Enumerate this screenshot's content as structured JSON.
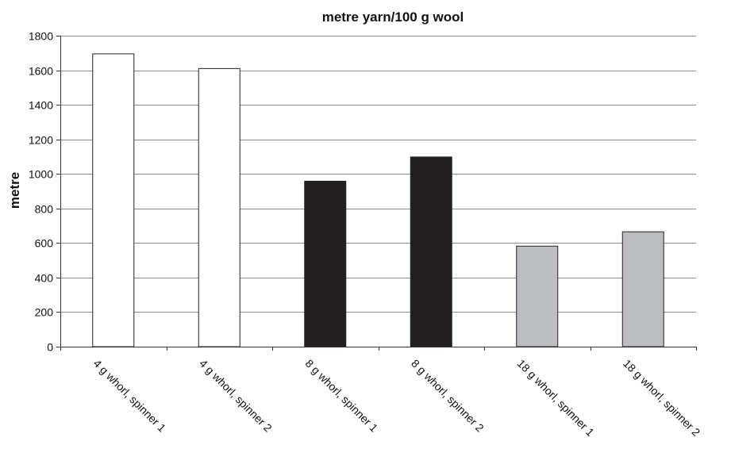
{
  "chart_data": {
    "type": "bar",
    "title": "metre yarn/100 g wool",
    "xlabel": "",
    "ylabel": "metre",
    "ylim": [
      0,
      1800
    ],
    "yticks": [
      0,
      200,
      400,
      600,
      800,
      1000,
      1200,
      1400,
      1600,
      1800
    ],
    "grid": true,
    "categories": [
      "4 g whorl, spinner 1",
      "4 g whorl, spinner 2",
      "8 g whorl, spinner 1",
      "8 g whorl, spinner 2",
      "18 g whorl, spinner 1",
      "18 g whorl, spinner 2"
    ],
    "values": [
      1695,
      1610,
      958,
      1098,
      582,
      665
    ],
    "bar_colors": [
      "#ffffff",
      "#ffffff",
      "#231f20",
      "#231f20",
      "#bcbdc0",
      "#bcbdc0"
    ]
  }
}
